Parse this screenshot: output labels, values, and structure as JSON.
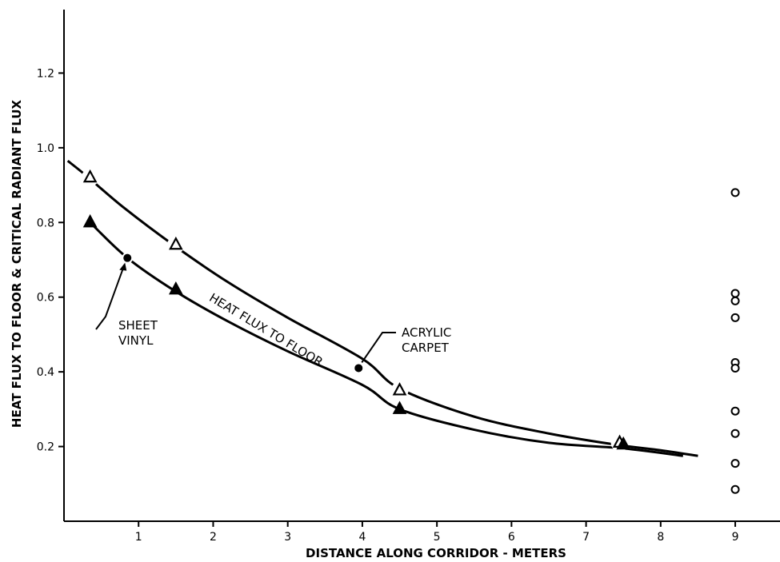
{
  "chart_data": {
    "type": "line",
    "title": "",
    "xlabel": "DISTANCE ALONG CORRIDOR - METERS",
    "ylabel": "HEAT FLUX TO FLOOR & CRITICAL RADIANT FLUX",
    "xlim": [
      0,
      9.6
    ],
    "ylim": [
      0,
      1.37
    ],
    "xticks": [
      1,
      2,
      3,
      4,
      5,
      6,
      7,
      8,
      9
    ],
    "yticks": [
      0.2,
      0.4,
      0.6,
      0.8,
      1.0,
      1.2
    ],
    "ytick_labels": [
      "0.2",
      "0.4",
      "0.6",
      "0.8",
      "1.0",
      "1.2"
    ],
    "grid": false,
    "series": [
      {
        "marker": "open-triangle",
        "curve": [
          [
            0.05,
            0.965
          ],
          [
            0.3,
            0.925
          ],
          [
            0.8,
            0.84
          ],
          [
            1.5,
            0.735
          ],
          [
            2.2,
            0.64
          ],
          [
            3.0,
            0.545
          ],
          [
            4.0,
            0.435
          ],
          [
            4.5,
            0.355
          ],
          [
            5.5,
            0.28
          ],
          [
            6.5,
            0.235
          ],
          [
            7.4,
            0.205
          ],
          [
            8.0,
            0.19
          ],
          [
            8.5,
            0.175
          ]
        ],
        "points": [
          [
            0.35,
            0.92
          ],
          [
            1.5,
            0.74
          ],
          [
            4.5,
            0.35
          ],
          [
            7.45,
            0.21
          ]
        ]
      },
      {
        "marker": "filled-triangle",
        "curve": [
          [
            0.35,
            0.8
          ],
          [
            0.85,
            0.705
          ],
          [
            1.5,
            0.615
          ],
          [
            2.2,
            0.535
          ],
          [
            3.0,
            0.455
          ],
          [
            4.0,
            0.365
          ],
          [
            4.5,
            0.3
          ],
          [
            5.5,
            0.245
          ],
          [
            6.5,
            0.21
          ],
          [
            7.5,
            0.195
          ],
          [
            8.3,
            0.175
          ]
        ],
        "points": [
          [
            0.35,
            0.8
          ],
          [
            1.5,
            0.62
          ],
          [
            4.5,
            0.3
          ],
          [
            7.5,
            0.205
          ]
        ]
      }
    ],
    "labeled_points": [
      {
        "label_lines": [
          "SHEET",
          "VINYL"
        ],
        "x": 0.85,
        "y": 0.705
      },
      {
        "label_lines": [
          "ACRYLIC",
          "CARPET"
        ],
        "x": 3.95,
        "y": 0.41
      }
    ],
    "critical_radiant_flux_points": {
      "x": 9,
      "values": [
        0.88,
        0.61,
        0.59,
        0.545,
        0.425,
        0.41,
        0.295,
        0.235,
        0.155,
        0.085
      ]
    },
    "curve_label": "HEAT FLUX TO FLOOR"
  }
}
